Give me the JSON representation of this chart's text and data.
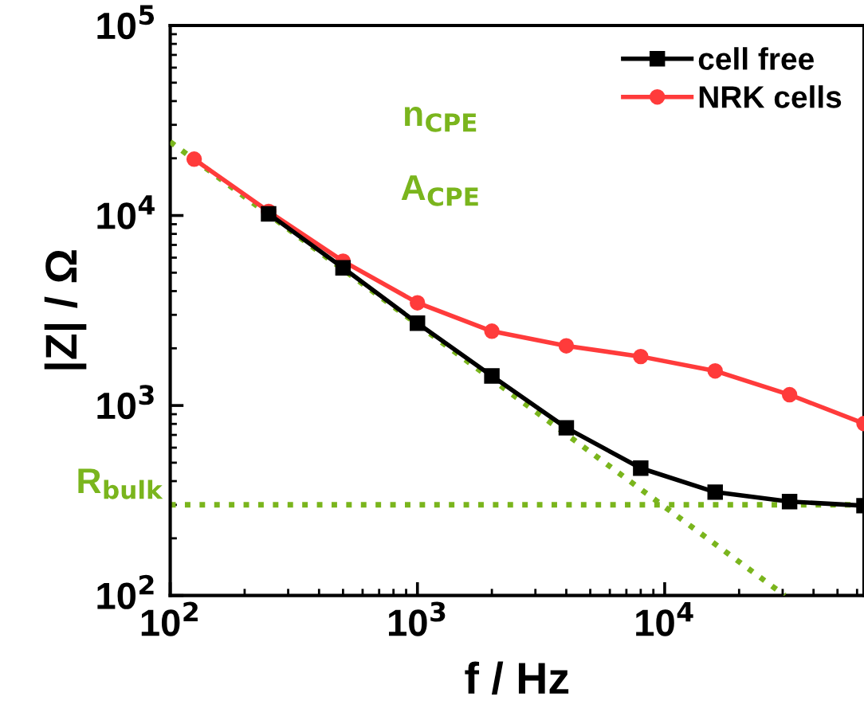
{
  "chart_data": {
    "type": "line",
    "xlabel": "f / Hz",
    "ylabel": "|Z| / Ω",
    "log": "xy",
    "xlim": [
      100,
      64000
    ],
    "ylim": [
      100,
      100000
    ],
    "xticks": [
      {
        "value": 100,
        "label": "10$^{2}$"
      },
      {
        "value": 1000,
        "label": "10$^{3}$"
      },
      {
        "value": 10000,
        "label": "10$^{4}$"
      }
    ],
    "yticks": [
      {
        "value": 100,
        "label": "10$^{2}$"
      },
      {
        "value": 1000,
        "label": "10$^{3}$"
      },
      {
        "value": 10000,
        "label": "10$^{4}$"
      },
      {
        "value": 100000,
        "label": "10$^{5}$"
      }
    ],
    "x": [
      125,
      250,
      500,
      1000,
      2000,
      4000,
      8000,
      16000,
      32000,
      64000
    ],
    "series": [
      {
        "name": "cell free",
        "color": "#000000",
        "marker": "square",
        "values": [
          null,
          10200,
          5300,
          2710,
          1430,
          763,
          468,
          350,
          312,
          297
        ]
      },
      {
        "name": "NRK cells",
        "color": "#ff3b3b",
        "marker": "circle",
        "values": [
          19800,
          10500,
          5750,
          3470,
          2460,
          2060,
          1810,
          1520,
          1140,
          803
        ]
      },
      {
        "type": "line",
        "color": "#7ab51d",
        "line_style": "dotted",
        "marker": "none",
        "x": [
          100,
          30600
        ],
        "values": [
          24400,
          100
        ]
      }
    ],
    "ref_lines": [
      {
        "axis": "y",
        "value": 300,
        "label": "R$_{bulk}$",
        "color": "#7ab51d",
        "line_style": "dotted"
      }
    ],
    "annotations": [
      "n$_{CPE}$",
      "A$_{CPE}$"
    ],
    "legend": "top right",
    "grid": false
  }
}
